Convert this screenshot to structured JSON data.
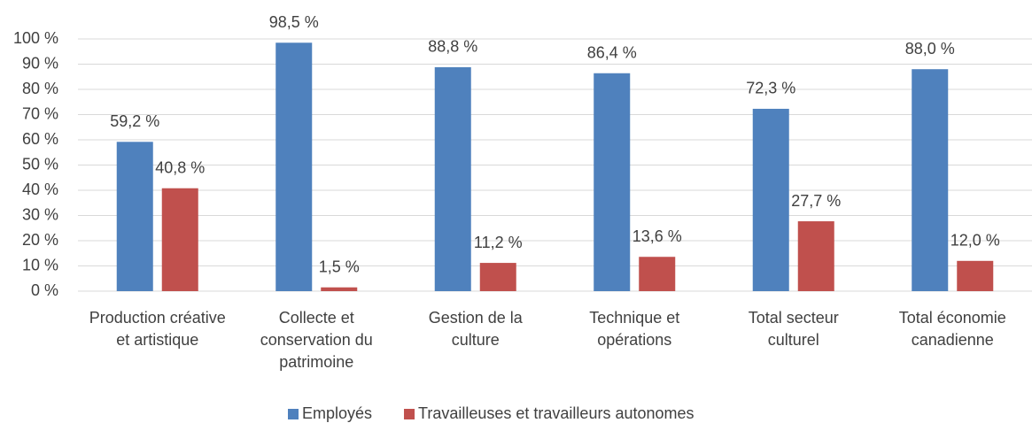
{
  "chart_data": {
    "type": "bar",
    "categories": [
      "Production créative et artistique",
      "Collecte et conservation du patrimoine",
      "Gestion de la culture",
      "Technique et opérations",
      "Total secteur culturel",
      "Total économie canadienne"
    ],
    "series": [
      {
        "name": "Employés",
        "color": "#4f81bd",
        "values": [
          59.2,
          98.5,
          88.8,
          86.4,
          72.3,
          88.0
        ],
        "value_labels": [
          "59,2 %",
          "98,5 %",
          "88,8 %",
          "86,4 %",
          "72,3 %",
          "88,0 %"
        ]
      },
      {
        "name": "Travailleuses et travailleurs autonomes",
        "color": "#c0504d",
        "values": [
          40.8,
          1.5,
          11.2,
          13.6,
          27.7,
          12.0
        ],
        "value_labels": [
          "40,8 %",
          "1,5 %",
          "11,2 %",
          "13,6 %",
          "27,7 %",
          "12,0 %"
        ]
      }
    ],
    "ylim": [
      0,
      100
    ],
    "yticks": [
      {
        "value": 0,
        "label": "0 %"
      },
      {
        "value": 10,
        "label": "10 %"
      },
      {
        "value": 20,
        "label": "20 %"
      },
      {
        "value": 30,
        "label": "30 %"
      },
      {
        "value": 40,
        "label": "40 %"
      },
      {
        "value": 50,
        "label": "50 %"
      },
      {
        "value": 60,
        "label": "60 %"
      },
      {
        "value": 70,
        "label": "70 %"
      },
      {
        "value": 80,
        "label": "80 %"
      },
      {
        "value": 90,
        "label": "90 %"
      },
      {
        "value": 100,
        "label": "100 %"
      }
    ],
    "grid": true,
    "legend": "bottom"
  }
}
